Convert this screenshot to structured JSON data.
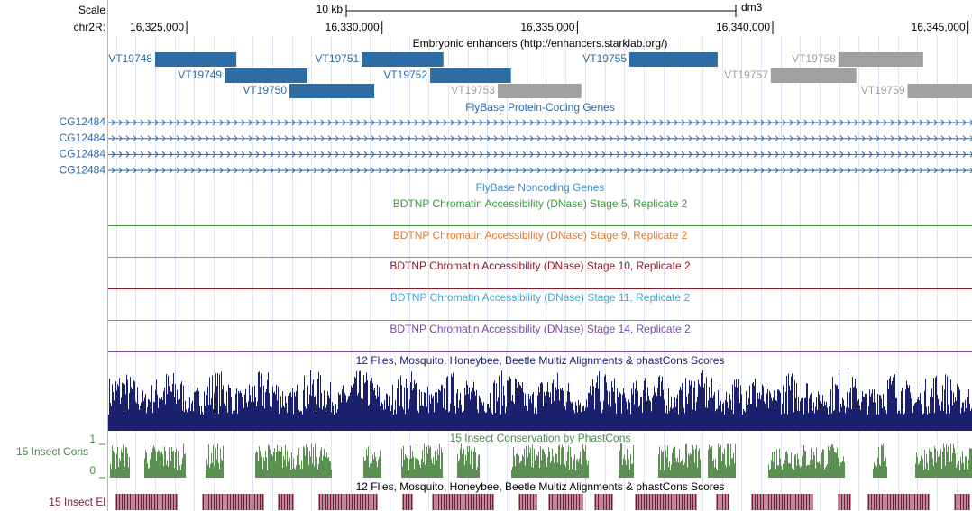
{
  "scale": {
    "label": "Scale",
    "size": "10 kb",
    "assembly": "dm3"
  },
  "ruler": {
    "chrom": "chr2R:",
    "xlim": [
      16322990,
      16345100
    ],
    "ticks": [
      {
        "value": 16325000,
        "label": "16,325,000"
      },
      {
        "value": 16330000,
        "label": "16,330,000"
      },
      {
        "value": 16335000,
        "label": "16,335,000"
      },
      {
        "value": 16340000,
        "label": "16,340,000"
      },
      {
        "value": 16345000,
        "label": "16,345,000"
      }
    ]
  },
  "tracks": [
    {
      "title": "Embryonic enhancers (http://enhancers.starklab.org/)",
      "features": [
        {
          "name": "VT19748",
          "start": 16324190,
          "end": 16326270,
          "color": "#2e6da4"
        },
        {
          "name": "VT19749",
          "start": 16325970,
          "end": 16328090,
          "color": "#2e6da4"
        },
        {
          "name": "VT19750",
          "start": 16327630,
          "end": 16329800,
          "color": "#2e6da4"
        },
        {
          "name": "VT19751",
          "start": 16329480,
          "end": 16331570,
          "color": "#2e6da4"
        },
        {
          "name": "VT19752",
          "start": 16331230,
          "end": 16333300,
          "color": "#2e6da4"
        },
        {
          "name": "VT19753",
          "start": 16332960,
          "end": 16335100,
          "color": "#a0a0a0"
        },
        {
          "name": "VT19755",
          "start": 16336330,
          "end": 16338590,
          "color": "#2e6da4"
        },
        {
          "name": "VT19757",
          "start": 16339950,
          "end": 16342140,
          "color": "#a0a0a0"
        },
        {
          "name": "VT19758",
          "start": 16341680,
          "end": 16343850,
          "color": "#a0a0a0"
        },
        {
          "name": "VT19759",
          "start": 16343450,
          "end": 16345100,
          "color": "#a0a0a0"
        }
      ]
    },
    {
      "title": "FlyBase Protein-Coding Genes",
      "genes": [
        "CG12484",
        "CG12484",
        "CG12484",
        "CG12484"
      ]
    },
    {
      "title": "FlyBase Noncoding Genes"
    },
    {
      "title": "BDTNP Chromatin Accessibility (DNase) Stage 5, Replicate 2"
    },
    {
      "title": "BDTNP Chromatin Accessibility (DNase) Stage 9, Replicate 2"
    },
    {
      "title": "BDTNP Chromatin Accessibility (DNase) Stage 10, Replicate 2"
    },
    {
      "title": "BDTNP Chromatin Accessibility (DNase) Stage 11, Replicate 2"
    },
    {
      "title": "BDTNP Chromatin Accessibility (DNase) Stage 14, Replicate 2"
    },
    {
      "title": "12 Flies, Mosquito, Honeybee, Beetle Multiz Alignments & phastCons Scores"
    },
    {
      "title": "15 Insect Conservation by PhastCons",
      "label": "15 Insect Cons",
      "ymax": "1",
      "ymin": "0"
    },
    {
      "title": "12 Flies, Mosquito, Honeybee, Beetle Multiz Alignments & phastCons Scores",
      "label": "15 Insect El"
    }
  ]
}
